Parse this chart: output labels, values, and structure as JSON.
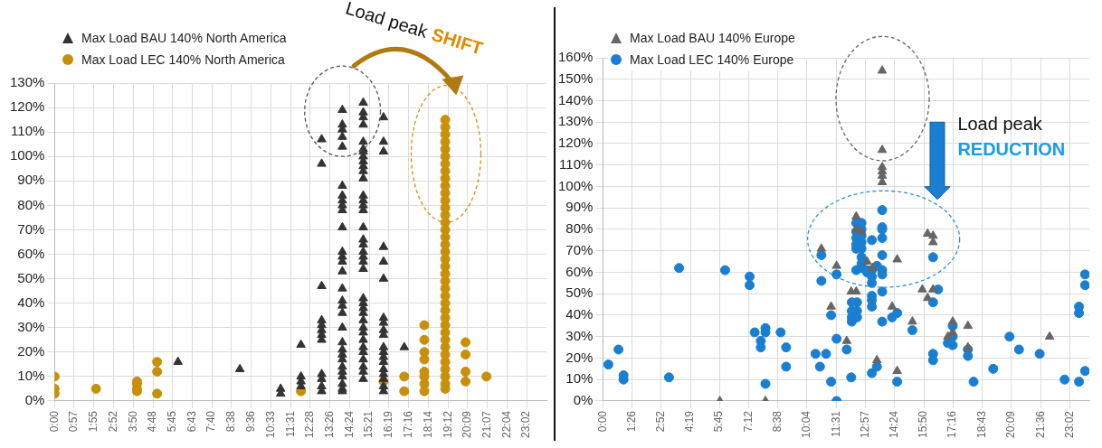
{
  "chart_data": [
    {
      "type": "scatter",
      "legend": "top left",
      "grid": true,
      "xlim": [
        0,
        24
      ],
      "ylim": [
        0,
        130
      ],
      "xticks": [
        {
          "value": 0,
          "label": "0:00"
        },
        {
          "value": 0.95,
          "label": "0:57"
        },
        {
          "value": 1.9167,
          "label": "1:55"
        },
        {
          "value": 2.8667,
          "label": "2:52"
        },
        {
          "value": 3.8333,
          "label": "3:50"
        },
        {
          "value": 4.8,
          "label": "4:48"
        },
        {
          "value": 5.75,
          "label": "5:45"
        },
        {
          "value": 6.7167,
          "label": "6:43"
        },
        {
          "value": 7.6667,
          "label": "7:40"
        },
        {
          "value": 8.6333,
          "label": "8:38"
        },
        {
          "value": 9.6,
          "label": "9:36"
        },
        {
          "value": 10.55,
          "label": "10:33"
        },
        {
          "value": 11.5167,
          "label": "11:31"
        },
        {
          "value": 12.4667,
          "label": "12:28"
        },
        {
          "value": 13.4333,
          "label": "13:26"
        },
        {
          "value": 14.4,
          "label": "14:24"
        },
        {
          "value": 15.35,
          "label": "15:21"
        },
        {
          "value": 16.3167,
          "label": "16:19"
        },
        {
          "value": 17.2667,
          "label": "17:16"
        },
        {
          "value": 18.2333,
          "label": "18:14"
        },
        {
          "value": 19.2,
          "label": "19:12"
        },
        {
          "value": 20.15,
          "label": "20:09"
        },
        {
          "value": 21.1167,
          "label": "21:07"
        },
        {
          "value": 22.0667,
          "label": "22:04"
        },
        {
          "value": 23.0333,
          "label": "23:02"
        }
      ],
      "yticks": [
        {
          "value": 0,
          "label": "0%"
        },
        {
          "value": 10,
          "label": "10%"
        },
        {
          "value": 20,
          "label": "20%"
        },
        {
          "value": 30,
          "label": "30%"
        },
        {
          "value": 40,
          "label": "40%"
        },
        {
          "value": 50,
          "label": "50%"
        },
        {
          "value": 60,
          "label": "60%"
        },
        {
          "value": 70,
          "label": "70%"
        },
        {
          "value": 80,
          "label": "80%"
        },
        {
          "value": 90,
          "label": "90%"
        },
        {
          "value": 100,
          "label": "100%"
        },
        {
          "value": 110,
          "label": "110%"
        },
        {
          "value": 120,
          "label": "120%"
        },
        {
          "value": 130,
          "label": "130%"
        }
      ],
      "annotations": [
        "Load peak",
        "SHIFT"
      ],
      "series": [
        {
          "name": "Max Load BAU 140% North America",
          "color": "#333333",
          "marker": "triangle",
          "x": [
            6.02,
            9.04,
            11.03,
            11.03,
            12.02,
            12.02,
            12.02,
            12.02,
            13.03,
            13.03,
            13.03,
            13.03,
            13.03,
            13.03,
            13.03,
            13.03,
            13.03,
            13.03,
            13.03,
            13.03,
            14.04,
            14.04,
            14.04,
            14.04,
            14.04,
            14.04,
            14.04,
            14.04,
            14.04,
            14.04,
            14.04,
            14.04,
            14.04,
            14.04,
            14.04,
            14.04,
            14.04,
            14.04,
            14.04,
            14.04,
            14.04,
            14.04,
            14.04,
            14.04,
            14.04,
            14.04,
            14.04,
            14.04,
            14.04,
            14.04,
            15.06,
            15.06,
            15.06,
            15.06,
            15.06,
            15.06,
            15.06,
            15.06,
            15.06,
            15.06,
            15.06,
            15.06,
            15.06,
            15.06,
            15.06,
            15.06,
            15.06,
            15.06,
            15.06,
            15.06,
            15.06,
            15.06,
            15.06,
            15.06,
            15.06,
            15.06,
            15.06,
            15.06,
            15.06,
            15.06,
            15.06,
            15.06,
            15.06,
            15.06,
            15.06,
            15.06,
            15.06,
            16.05,
            16.05,
            16.05,
            16.05,
            16.05,
            16.05,
            16.05,
            16.05,
            16.05,
            16.05,
            16.05,
            16.05,
            16.05,
            16.05,
            16.05,
            16.05,
            16.05,
            16.05,
            16.05,
            17.06
          ],
          "values": [
            16,
            13,
            5,
            3,
            23,
            10,
            8,
            6,
            107,
            97,
            47,
            33,
            31,
            29,
            27,
            25,
            11,
            9,
            6,
            4,
            119,
            113,
            111,
            108,
            104,
            88,
            84,
            82,
            80,
            78,
            71,
            61,
            59,
            57,
            53,
            46,
            41,
            39,
            36,
            30,
            24,
            21,
            19,
            17,
            14,
            12,
            10,
            7,
            5,
            4,
            122,
            118,
            116,
            113,
            106,
            103,
            102,
            100,
            98,
            96,
            94,
            91,
            84,
            82,
            80,
            78,
            71,
            66,
            64,
            61,
            59,
            57,
            54,
            42,
            40,
            38,
            36,
            33,
            30,
            28,
            25,
            22,
            20,
            17,
            14,
            12,
            9,
            116,
            106,
            102,
            63,
            57,
            50,
            34,
            32,
            29,
            27,
            22,
            20,
            18,
            16,
            13,
            11,
            9,
            6,
            4,
            22
          ]
        },
        {
          "name": "Max Load LEC 140% North America",
          "color": "#c8900a",
          "marker": "circle",
          "x": [
            0,
            0,
            0,
            2.02,
            4.02,
            4.02,
            4.02,
            4.02,
            5.0,
            5.0,
            5.0,
            12.02,
            16.05,
            17.06,
            17.06,
            18.04,
            18.04,
            18.04,
            18.04,
            18.04,
            18.04,
            18.04,
            18.04,
            19.06,
            19.06,
            19.06,
            19.06,
            19.06,
            19.06,
            19.06,
            19.06,
            19.06,
            19.06,
            19.06,
            19.06,
            19.06,
            19.06,
            19.06,
            19.06,
            19.06,
            19.06,
            19.06,
            19.06,
            19.06,
            19.06,
            19.06,
            19.06,
            19.06,
            19.06,
            19.06,
            19.06,
            19.06,
            19.06,
            19.06,
            19.06,
            19.06,
            19.06,
            19.06,
            19.06,
            19.06,
            19.06,
            20.05,
            20.05,
            20.05,
            20.05,
            21.07
          ],
          "values": [
            10,
            5,
            3,
            5,
            8,
            7,
            5,
            4,
            16,
            12,
            3,
            4,
            8,
            10,
            4,
            31,
            25,
            20,
            17,
            12,
            10,
            7,
            4,
            115,
            112,
            109,
            106,
            103,
            100,
            97,
            94,
            91,
            88,
            85,
            82,
            79,
            76,
            73,
            70,
            67,
            64,
            61,
            58,
            55,
            52,
            49,
            46,
            43,
            40,
            37,
            34,
            31,
            28,
            25,
            22,
            19,
            16,
            13,
            10,
            7,
            5,
            24,
            19,
            12,
            8,
            10
          ]
        }
      ]
    },
    {
      "type": "scatter",
      "legend": "top left",
      "grid": true,
      "xlim": [
        0,
        24
      ],
      "ylim": [
        0,
        160
      ],
      "xticks": [
        {
          "value": 0,
          "label": "0:00"
        },
        {
          "value": 1.4333,
          "label": "1:26"
        },
        {
          "value": 2.8667,
          "label": "2:52"
        },
        {
          "value": 4.3167,
          "label": "4:19"
        },
        {
          "value": 5.75,
          "label": "5:45"
        },
        {
          "value": 7.2,
          "label": "7:12"
        },
        {
          "value": 8.6333,
          "label": "8:38"
        },
        {
          "value": 10.0667,
          "label": "10:04"
        },
        {
          "value": 11.5167,
          "label": "11:31"
        },
        {
          "value": 12.95,
          "label": "12:57"
        },
        {
          "value": 14.4,
          "label": "14:24"
        },
        {
          "value": 15.8333,
          "label": "15:50"
        },
        {
          "value": 17.2667,
          "label": "17:16"
        },
        {
          "value": 18.7167,
          "label": "18:43"
        },
        {
          "value": 20.15,
          "label": "20:09"
        },
        {
          "value": 21.6,
          "label": "21:36"
        },
        {
          "value": 23.0333,
          "label": "23:02"
        }
      ],
      "yticks": [
        {
          "value": 0,
          "label": "0%"
        },
        {
          "value": 10,
          "label": "10%"
        },
        {
          "value": 20,
          "label": "20%"
        },
        {
          "value": 30,
          "label": "30%"
        },
        {
          "value": 40,
          "label": "40%"
        },
        {
          "value": 50,
          "label": "50%"
        },
        {
          "value": 60,
          "label": "60%"
        },
        {
          "value": 70,
          "label": "70%"
        },
        {
          "value": 80,
          "label": "80%"
        },
        {
          "value": 90,
          "label": "90%"
        },
        {
          "value": 100,
          "label": "100%"
        },
        {
          "value": 110,
          "label": "110%"
        },
        {
          "value": 120,
          "label": "120%"
        },
        {
          "value": 130,
          "label": "130%"
        },
        {
          "value": 140,
          "label": "140%"
        },
        {
          "value": 150,
          "label": "150%"
        },
        {
          "value": 160,
          "label": "160%"
        }
      ],
      "annotations": [
        "Load peak",
        "REDUCTION"
      ],
      "series": [
        {
          "name": "Max Load BAU 140% Europe",
          "color": "#666666",
          "marker": "triangle",
          "x": [
            5.77,
            8.02,
            10.78,
            11.26,
            11.53,
            12.03,
            12.25,
            12.5,
            12.5,
            12.5,
            12.76,
            13.03,
            13.3,
            13.52,
            13.78,
            13.78,
            13.78,
            13.78,
            13.78,
            13.78,
            14.27,
            14.52,
            14.52,
            15.27,
            15.76,
            16.02,
            16.02,
            16.29,
            16.29,
            16.29,
            17.02,
            17.26,
            17.26,
            18.01,
            18.01,
            22.04
          ],
          "values": [
            0,
            0,
            71,
            44,
            63,
            28,
            51,
            86,
            80,
            51,
            79,
            65,
            62,
            19,
            154,
            117,
            109,
            107,
            105,
            102,
            44,
            66,
            14,
            37,
            52,
            78,
            48,
            77,
            74,
            52,
            30,
            37,
            32,
            35,
            25,
            30
          ]
        },
        {
          "name": "Max Load LEC 140% Europe",
          "color": "#1a7fd0",
          "marker": "circle",
          "x": [
            0.27,
            0.77,
            1.02,
            1.02,
            3.26,
            3.76,
            6.03,
            7.24,
            7.24,
            7.49,
            7.79,
            7.79,
            8.02,
            8.02,
            8.02,
            8.77,
            9.04,
            9.04,
            10.49,
            10.71,
            10.78,
            10.78,
            11.01,
            11.26,
            11.26,
            11.53,
            11.53,
            11.53,
            12.03,
            12.25,
            12.28,
            12.28,
            12.28,
            12.28,
            12.5,
            12.5,
            12.5,
            12.5,
            12.5,
            12.5,
            12.54,
            12.54,
            12.54,
            12.76,
            12.76,
            12.76,
            12.76,
            12.76,
            12.76,
            12.76,
            12.76,
            13.03,
            13.03,
            13.27,
            13.27,
            13.27,
            13.27,
            13.27,
            13.27,
            13.27,
            13.27,
            13.52,
            13.52,
            13.78,
            13.78,
            13.78,
            13.78,
            13.78,
            13.78,
            13.78,
            13.78,
            13.78,
            14.27,
            14.52,
            14.52,
            15.27,
            16.29,
            16.29,
            16.29,
            16.29,
            16.54,
            17.02,
            17.26,
            17.26,
            17.26,
            18.01,
            18.01,
            18.29,
            19.26,
            20.06,
            20.53,
            21.55,
            22.78,
            23.49,
            23.49,
            23.49,
            23.79,
            23.79,
            23.79
          ],
          "values": [
            17,
            24,
            12,
            10,
            11,
            62,
            61,
            58,
            54,
            32,
            28,
            25,
            34,
            32,
            8,
            32,
            25,
            16,
            22,
            16,
            68,
            56,
            22,
            40,
            9,
            59,
            29,
            0,
            24,
            11,
            46,
            42,
            39,
            37,
            83,
            79,
            76,
            73,
            71,
            61,
            46,
            42,
            39,
            83,
            80,
            77,
            74,
            71,
            67,
            64,
            62,
            61,
            60,
            75,
            61,
            58,
            55,
            49,
            47,
            44,
            13,
            16,
            63,
            89,
            81,
            80,
            76,
            68,
            61,
            59,
            51,
            37,
            39,
            41,
            9,
            33,
            67,
            46,
            22,
            19,
            52,
            27,
            35,
            30,
            26,
            24,
            21,
            9,
            15,
            30,
            24,
            22,
            10,
            44,
            41,
            9,
            59,
            54,
            14
          ]
        }
      ]
    }
  ]
}
